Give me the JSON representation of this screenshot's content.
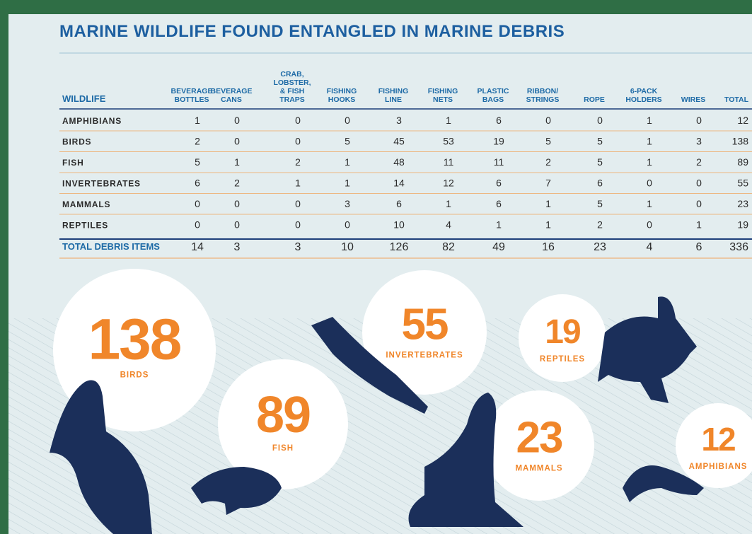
{
  "title": "MARINE WILDLIFE FOUND ENTANGLED IN MARINE DEBRIS",
  "table": {
    "header": [
      [
        "WILDLIFE"
      ],
      [
        "BEVERAGE",
        "BOTTLES"
      ],
      [
        "BEVERAGE",
        "CANS"
      ],
      [
        "CRAB,",
        "LOBSTER,",
        "& FISH",
        "TRAPS"
      ],
      [
        "FISHING",
        "HOOKS"
      ],
      [
        "FISHING",
        "LINE"
      ],
      [
        "FISHING",
        "NETS"
      ],
      [
        "PLASTIC",
        "BAGS"
      ],
      [
        "RIBBON/",
        "STRINGS"
      ],
      [
        "ROPE"
      ],
      [
        "6-PACK",
        "HOLDERS"
      ],
      [
        "WIRES"
      ],
      [
        "TOTAL"
      ]
    ],
    "rows": [
      [
        "AMPHIBIANS",
        1,
        0,
        0,
        0,
        3,
        1,
        6,
        0,
        0,
        1,
        0,
        12
      ],
      [
        "BIRDS",
        2,
        0,
        0,
        5,
        45,
        53,
        19,
        5,
        5,
        1,
        3,
        138
      ],
      [
        "FISH",
        5,
        1,
        2,
        1,
        48,
        11,
        11,
        2,
        5,
        1,
        2,
        89
      ],
      [
        "INVERTEBRATES",
        6,
        2,
        1,
        1,
        14,
        12,
        6,
        7,
        6,
        0,
        0,
        55
      ],
      [
        "MAMMALS",
        0,
        0,
        0,
        3,
        6,
        1,
        6,
        1,
        5,
        1,
        0,
        23
      ],
      [
        "REPTILES",
        0,
        0,
        0,
        0,
        10,
        4,
        1,
        1,
        2,
        0,
        1,
        19
      ]
    ],
    "total_row": [
      "TOTAL DEBRIS ITEMS",
      14,
      3,
      3,
      10,
      126,
      82,
      49,
      16,
      23,
      4,
      6,
      336
    ]
  },
  "highlights": [
    {
      "number": 138,
      "label": "BIRDS"
    },
    {
      "number": 89,
      "label": "FISH"
    },
    {
      "number": 55,
      "label": "INVERTEBRATES"
    },
    {
      "number": 19,
      "label": "REPTILES"
    },
    {
      "number": 23,
      "label": "MAMMALS"
    },
    {
      "number": 12,
      "label": "AMPHIBIANS"
    }
  ]
}
